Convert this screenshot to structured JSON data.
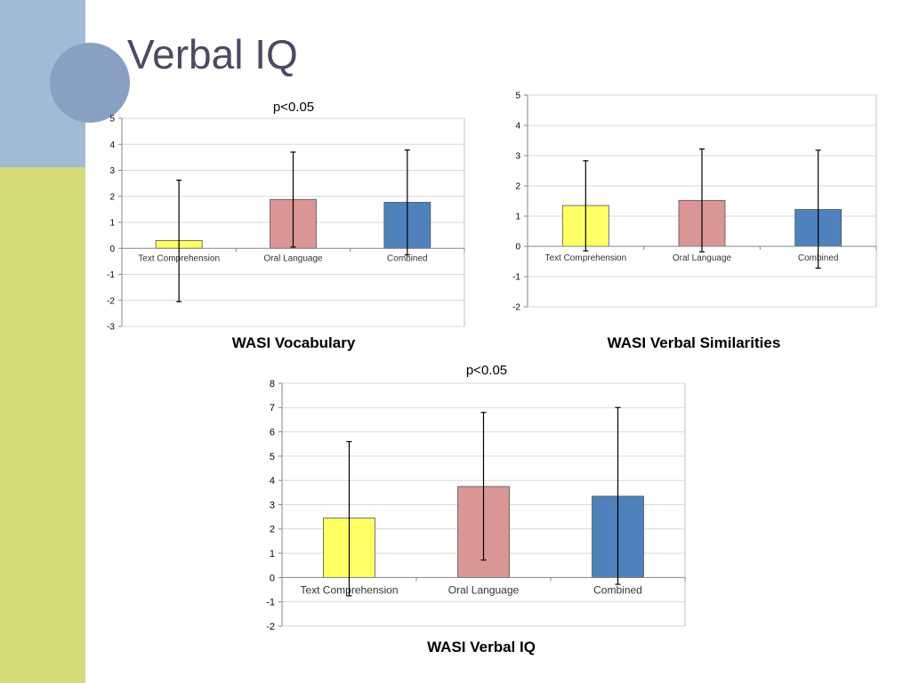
{
  "slide": {
    "title": "Verbal IQ"
  },
  "colors": {
    "yellow": "#ffff66",
    "pink": "#d99694",
    "blue": "#4f81bd",
    "band_top": "#a3bad6",
    "band_bottom": "#d5db79"
  },
  "chart_data": [
    {
      "type": "bar",
      "title": "WASI Vocabulary",
      "annotation": "p<0.05",
      "categories": [
        "Text Comprehension",
        "Oral Language",
        "Combined"
      ],
      "values": [
        0.3,
        1.88,
        1.77
      ],
      "error_low": [
        -2.05,
        0.05,
        -0.25
      ],
      "error_high": [
        2.62,
        3.7,
        3.78
      ],
      "bar_colors": [
        "#ffff66",
        "#d99694",
        "#4f81bd"
      ],
      "ylim": [
        -3,
        5
      ],
      "yticks": [
        -3,
        -2,
        -1,
        0,
        1,
        2,
        3,
        4,
        5
      ],
      "grid": true
    },
    {
      "type": "bar",
      "title": "WASI Verbal Similarities",
      "annotation": "",
      "categories": [
        "Text Comprehension",
        "Oral Language",
        "Combined"
      ],
      "values": [
        1.35,
        1.52,
        1.22
      ],
      "error_low": [
        -0.15,
        -0.18,
        -0.72
      ],
      "error_high": [
        2.83,
        3.22,
        3.18
      ],
      "bar_colors": [
        "#ffff66",
        "#d99694",
        "#4f81bd"
      ],
      "ylim": [
        -2,
        5
      ],
      "yticks": [
        -2,
        -1,
        0,
        1,
        2,
        3,
        4,
        5
      ],
      "grid": true
    },
    {
      "type": "bar",
      "title": "WASI Verbal IQ",
      "annotation": "p<0.05",
      "categories": [
        "Text Comprehension",
        "Oral Language",
        "Combined"
      ],
      "values": [
        2.45,
        3.75,
        3.35
      ],
      "error_low": [
        -0.75,
        0.72,
        -0.28
      ],
      "error_high": [
        5.6,
        6.8,
        7.0
      ],
      "bar_colors": [
        "#ffff66",
        "#d99694",
        "#4f81bd"
      ],
      "ylim": [
        -2,
        8
      ],
      "yticks": [
        -2,
        -1,
        0,
        1,
        2,
        3,
        4,
        5,
        6,
        7,
        8
      ],
      "grid": true
    }
  ]
}
